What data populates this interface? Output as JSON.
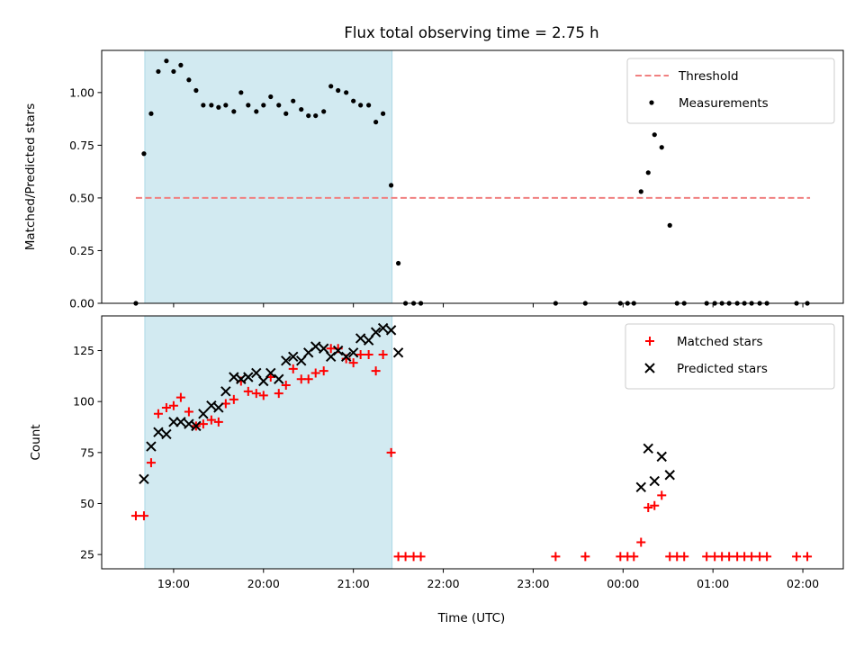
{
  "chart_data": {
    "title": "Flux total observing time = 2.75 h",
    "xlabel": "Time (UTC)",
    "x_ticks": [
      "19:00",
      "20:00",
      "21:00",
      "22:00",
      "23:00",
      "00:00",
      "01:00",
      "02:00"
    ],
    "x_range_hours": [
      18.2,
      26.45
    ],
    "shaded_region_hours": [
      18.68,
      21.43
    ],
    "colors": {
      "shade": "#add8e6",
      "threshold": "#f08080",
      "measurement": "#000000",
      "matched": "#ff0000",
      "predicted": "#000000"
    },
    "panels": [
      {
        "type": "scatter",
        "ylabel": "Matched/Predicted stars",
        "ylim": [
          0,
          1.2
        ],
        "yticks": [
          "0.00",
          "0.25",
          "0.50",
          "0.75",
          "1.00"
        ],
        "threshold": {
          "name": "Threshold",
          "value": 0.5,
          "x_range_hours": [
            18.58,
            26.08
          ]
        },
        "legend_position": "upper right",
        "series": [
          {
            "name": "Measurements",
            "marker": "dot",
            "points": [
              [
                18.58,
                0.0
              ],
              [
                18.67,
                0.71
              ],
              [
                18.75,
                0.9
              ],
              [
                18.83,
                1.1
              ],
              [
                18.92,
                1.15
              ],
              [
                19.0,
                1.1
              ],
              [
                19.08,
                1.13
              ],
              [
                19.17,
                1.06
              ],
              [
                19.25,
                1.01
              ],
              [
                19.33,
                0.94
              ],
              [
                19.42,
                0.94
              ],
              [
                19.5,
                0.93
              ],
              [
                19.58,
                0.94
              ],
              [
                19.67,
                0.91
              ],
              [
                19.75,
                1.0
              ],
              [
                19.83,
                0.94
              ],
              [
                19.92,
                0.91
              ],
              [
                20.0,
                0.94
              ],
              [
                20.08,
                0.98
              ],
              [
                20.17,
                0.94
              ],
              [
                20.25,
                0.9
              ],
              [
                20.33,
                0.96
              ],
              [
                20.42,
                0.92
              ],
              [
                20.5,
                0.89
              ],
              [
                20.58,
                0.89
              ],
              [
                20.67,
                0.91
              ],
              [
                20.75,
                1.03
              ],
              [
                20.83,
                1.01
              ],
              [
                20.92,
                1.0
              ],
              [
                21.0,
                0.96
              ],
              [
                21.08,
                0.94
              ],
              [
                21.17,
                0.94
              ],
              [
                21.25,
                0.86
              ],
              [
                21.33,
                0.9
              ],
              [
                21.42,
                0.56
              ],
              [
                21.5,
                0.19
              ],
              [
                21.58,
                0.0
              ],
              [
                21.67,
                0.0
              ],
              [
                21.75,
                0.0
              ],
              [
                23.25,
                0.0
              ],
              [
                23.58,
                0.0
              ],
              [
                23.97,
                0.0
              ],
              [
                24.05,
                0.0
              ],
              [
                24.12,
                0.0
              ],
              [
                24.2,
                0.53
              ],
              [
                24.28,
                0.62
              ],
              [
                24.35,
                0.8
              ],
              [
                24.43,
                0.74
              ],
              [
                24.52,
                0.37
              ],
              [
                24.6,
                0.0
              ],
              [
                24.68,
                0.0
              ],
              [
                24.93,
                0.0
              ],
              [
                25.02,
                0.0
              ],
              [
                25.1,
                0.0
              ],
              [
                25.18,
                0.0
              ],
              [
                25.27,
                0.0
              ],
              [
                25.35,
                0.0
              ],
              [
                25.43,
                0.0
              ],
              [
                25.52,
                0.0
              ],
              [
                25.6,
                0.0
              ],
              [
                25.93,
                0.0
              ],
              [
                26.05,
                0.0
              ]
            ]
          }
        ]
      },
      {
        "type": "scatter",
        "ylabel": "Count",
        "ylim": [
          18,
          142
        ],
        "yticks": [
          "25",
          "50",
          "75",
          "100",
          "125"
        ],
        "legend_position": "upper right",
        "series": [
          {
            "name": "Matched stars",
            "marker": "plus",
            "points": [
              [
                18.58,
                44
              ],
              [
                18.67,
                44
              ],
              [
                18.75,
                70
              ],
              [
                18.83,
                94
              ],
              [
                18.92,
                97
              ],
              [
                19.0,
                98
              ],
              [
                19.08,
                102
              ],
              [
                19.17,
                95
              ],
              [
                19.25,
                88
              ],
              [
                19.33,
                89
              ],
              [
                19.42,
                91
              ],
              [
                19.5,
                90
              ],
              [
                19.58,
                99
              ],
              [
                19.67,
                101
              ],
              [
                19.75,
                110
              ],
              [
                19.83,
                105
              ],
              [
                19.92,
                104
              ],
              [
                20.0,
                103
              ],
              [
                20.08,
                112
              ],
              [
                20.17,
                104
              ],
              [
                20.25,
                108
              ],
              [
                20.33,
                116
              ],
              [
                20.42,
                111
              ],
              [
                20.5,
                111
              ],
              [
                20.58,
                114
              ],
              [
                20.67,
                115
              ],
              [
                20.75,
                126
              ],
              [
                20.83,
                126
              ],
              [
                20.92,
                121
              ],
              [
                21.0,
                119
              ],
              [
                21.08,
                123
              ],
              [
                21.17,
                123
              ],
              [
                21.25,
                115
              ],
              [
                21.33,
                123
              ],
              [
                21.42,
                75
              ],
              [
                21.5,
                24
              ],
              [
                21.58,
                24
              ],
              [
                21.67,
                24
              ],
              [
                21.75,
                24
              ],
              [
                23.25,
                24
              ],
              [
                23.58,
                24
              ],
              [
                23.97,
                24
              ],
              [
                24.05,
                24
              ],
              [
                24.12,
                24
              ],
              [
                24.2,
                31
              ],
              [
                24.28,
                48
              ],
              [
                24.35,
                49
              ],
              [
                24.43,
                54
              ],
              [
                24.52,
                24
              ],
              [
                24.6,
                24
              ],
              [
                24.68,
                24
              ],
              [
                24.93,
                24
              ],
              [
                25.02,
                24
              ],
              [
                25.1,
                24
              ],
              [
                25.18,
                24
              ],
              [
                25.27,
                24
              ],
              [
                25.35,
                24
              ],
              [
                25.43,
                24
              ],
              [
                25.52,
                24
              ],
              [
                25.6,
                24
              ],
              [
                25.93,
                24
              ],
              [
                26.05,
                24
              ]
            ]
          },
          {
            "name": "Predicted stars",
            "marker": "x",
            "points": [
              [
                18.67,
                62
              ],
              [
                18.75,
                78
              ],
              [
                18.83,
                85
              ],
              [
                18.92,
                84
              ],
              [
                19.0,
                90
              ],
              [
                19.08,
                90
              ],
              [
                19.17,
                89
              ],
              [
                19.25,
                88
              ],
              [
                19.33,
                94
              ],
              [
                19.42,
                98
              ],
              [
                19.5,
                97
              ],
              [
                19.58,
                105
              ],
              [
                19.67,
                112
              ],
              [
                19.75,
                111
              ],
              [
                19.83,
                112
              ],
              [
                19.92,
                114
              ],
              [
                20.0,
                110
              ],
              [
                20.08,
                114
              ],
              [
                20.17,
                111
              ],
              [
                20.25,
                120
              ],
              [
                20.33,
                122
              ],
              [
                20.42,
                120
              ],
              [
                20.5,
                124
              ],
              [
                20.58,
                127
              ],
              [
                20.67,
                126
              ],
              [
                20.75,
                122
              ],
              [
                20.83,
                125
              ],
              [
                20.92,
                122
              ],
              [
                21.0,
                124
              ],
              [
                21.08,
                131
              ],
              [
                21.17,
                130
              ],
              [
                21.25,
                134
              ],
              [
                21.33,
                136
              ],
              [
                21.42,
                135
              ],
              [
                21.5,
                124
              ],
              [
                24.2,
                58
              ],
              [
                24.28,
                77
              ],
              [
                24.35,
                61
              ],
              [
                24.43,
                73
              ],
              [
                24.52,
                64
              ]
            ]
          }
        ]
      }
    ]
  }
}
